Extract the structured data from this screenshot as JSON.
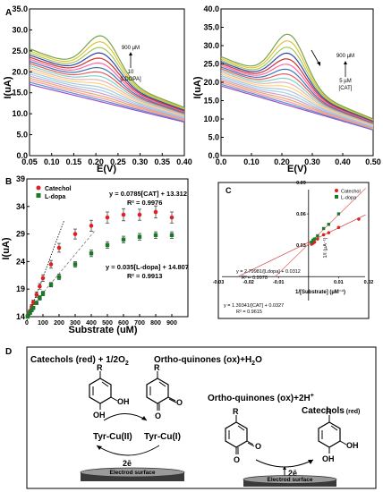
{
  "panels": {
    "A": "A",
    "B": "B",
    "C": "C",
    "D": "D"
  },
  "panel_a": {
    "left": {
      "annotation": [
        "900 µM",
        "10",
        "[LDOPA]"
      ],
      "colors": [
        "#9a50c8",
        "#5a8fd0",
        "#ff9999",
        "#e9a66b",
        "#c8a0d8",
        "#9fd0e0",
        "#b0c4de",
        "#ffd27f",
        "#e7b3b3",
        "#7fd4c4",
        "#e55c5c",
        "#3c78b4",
        "#ff66a3",
        "#cc3333",
        "#3344aa",
        "#9ecb5a",
        "#e2c23a",
        "#75a548"
      ]
    },
    "right": {
      "annotation": [
        "900 µM",
        "5 µM",
        "[CAT]"
      ],
      "colors": [
        "#9a50c8",
        "#5a8fd0",
        "#ff9999",
        "#e9a66b",
        "#c8a0d8",
        "#9fd0e0",
        "#b0c4de",
        "#ffd27f",
        "#e7b3b3",
        "#7fd4c4",
        "#e55c5c",
        "#3c78b4",
        "#ff66a3",
        "#cc3333",
        "#3344aa",
        "#9ecb5a",
        "#e2c23a",
        "#75a548"
      ]
    }
  },
  "panel_b": {
    "legend": [
      "Catechol",
      "L-dopa"
    ],
    "eq_catechol": [
      "y = 0.0785[CAT] + 13.312",
      "R² = 0.9976"
    ],
    "eq_ldopa": [
      "y = 0.035[L-dopa] + 14.807",
      "R² = 0.9913"
    ],
    "colors": {
      "catechol": "#e02020",
      "ldopa": "#1a7a2a"
    }
  },
  "panel_c": {
    "legend": [
      "Catechol",
      "L-dopa"
    ],
    "eq_ldopa": [
      "y = 2.79981/[Ldopa] + 0.0312",
      "R² = 0.9978"
    ],
    "eq_catechol": [
      "y = 1.39341/[CAT] + 0.0327",
      "R² = 0.9615"
    ],
    "xlabel": "1/[Substrate] (µM⁻¹)",
    "ylabel": "1/I (µA⁻¹)"
  },
  "panel_d": {
    "left_title": "Catechols (red) + 1/2O",
    "left_title_sub": "2",
    "left_product": "Ortho-quinones (ox)+H",
    "left_product_sub": "2",
    "left_product_end": "O",
    "right_title": "Ortho-quinones (ox)+2H",
    "right_title_sup": "+",
    "right_product": "Catechols",
    "right_product_note": "(red)",
    "enzyme_left": "Tyr-Cu(II)",
    "enzyme_right": "Tyr-Cu(I)",
    "electrons_left": "2ē",
    "electrons_right": "2ē",
    "electrode_left": "Electrod surface",
    "electrode_right": "Electrod surface",
    "r_label": "R",
    "oh": "OH",
    "o": "O"
  },
  "chart_data": [
    {
      "type": "line",
      "title": "",
      "xlabel": "E(V)",
      "ylabel": "I(uA)",
      "xlim": [
        0.05,
        0.4
      ],
      "ylim": [
        0.0,
        35.0
      ],
      "x_ticks": [
        "0.05",
        "0.10",
        "0.15",
        "0.20",
        "0.25",
        "0.30",
        "0.35",
        "0.40"
      ],
      "y_ticks": [
        "0.0",
        "5.0",
        "10.0",
        "15.0",
        "20.0",
        "25.0",
        "30.0",
        "35.0"
      ],
      "curves": {
        "count": 18,
        "peak_x": 0.215,
        "peak_y_min": 13.0,
        "peak_y_max": 28.5,
        "start_y_min": 17.0,
        "start_y_max": 25.5,
        "end_y_min": 8.0,
        "end_y_max": 11.5
      }
    },
    {
      "type": "line",
      "title": "",
      "xlabel": "E(V)",
      "ylabel": "I(uA)",
      "xlim": [
        0.0,
        0.5
      ],
      "ylim": [
        0.0,
        40.0
      ],
      "x_ticks": [
        "0.0",
        "0.10",
        "0.20",
        "0.30",
        "0.40",
        "0.50"
      ],
      "y_ticks": [
        "0.0",
        "5.0",
        "10.0",
        "15.0",
        "20.0",
        "25.0",
        "30.0",
        "35.0",
        "40.0"
      ],
      "curves": {
        "count": 18,
        "peak_x": 0.225,
        "peak_y_min": 15.0,
        "peak_y_max": 33.0,
        "start_y_min": 19.0,
        "start_y_max": 27.0,
        "end_y_min": 7.0,
        "end_y_max": 10.0
      }
    },
    {
      "type": "scatter",
      "title": "",
      "xlabel": "Substrate (uM)",
      "ylabel": "I(uA)",
      "xlim": [
        0,
        1000
      ],
      "ylim": [
        14,
        39
      ],
      "x_ticks": [
        "0",
        "100",
        "200",
        "300",
        "400",
        "500",
        "600",
        "700",
        "800",
        "900"
      ],
      "y_ticks": [
        "14",
        "19",
        "24",
        "29",
        "34",
        "39"
      ],
      "series": [
        {
          "name": "Catechol",
          "x": [
            5,
            10,
            20,
            30,
            40,
            60,
            80,
            100,
            150,
            200,
            300,
            400,
            500,
            600,
            700,
            800,
            900
          ],
          "y": [
            14.1,
            14.5,
            15.0,
            15.8,
            16.6,
            18.0,
            19.5,
            21.0,
            23.5,
            26.5,
            29.0,
            30.5,
            32.0,
            32.5,
            32.5,
            33.0,
            32.0
          ],
          "err": [
            0.3,
            0.3,
            0.3,
            0.4,
            0.4,
            0.5,
            0.5,
            0.6,
            0.7,
            0.8,
            0.9,
            1.0,
            1.0,
            1.1,
            1.0,
            1.1,
            1.0
          ]
        },
        {
          "name": "L-dopa",
          "x": [
            5,
            10,
            20,
            30,
            40,
            60,
            80,
            100,
            150,
            200,
            300,
            400,
            500,
            600,
            700,
            800,
            900
          ],
          "y": [
            14.0,
            14.3,
            14.7,
            15.2,
            15.6,
            16.5,
            17.4,
            18.2,
            19.8,
            21.2,
            23.5,
            25.5,
            27.0,
            28.0,
            28.5,
            28.8,
            28.8
          ],
          "err": [
            0.2,
            0.2,
            0.2,
            0.3,
            0.3,
            0.3,
            0.4,
            0.4,
            0.4,
            0.5,
            0.5,
            0.6,
            0.6,
            0.6,
            0.6,
            0.6,
            0.6
          ]
        }
      ]
    },
    {
      "type": "scatter",
      "title": "",
      "xlabel": "1/[Substrate] (µM⁻¹)",
      "ylabel": "1/I (µA⁻¹)",
      "xlim": [
        -0.03,
        0.02
      ],
      "ylim": [
        -0.04,
        0.09
      ],
      "x_ticks": [
        "-0.03",
        "-0.02",
        "-0.01",
        "0.01",
        "0.02"
      ],
      "y_ticks": [
        "0.03",
        "0.06",
        "0.09"
      ],
      "series": [
        {
          "name": "Catechol",
          "x": [
            0.001,
            0.0015,
            0.002,
            0.003,
            0.005,
            0.0067,
            0.01,
            0.0167
          ],
          "y": [
            0.031,
            0.032,
            0.033,
            0.036,
            0.04,
            0.042,
            0.047,
            0.055
          ]
        },
        {
          "name": "L-dopa",
          "x": [
            0.001,
            0.0015,
            0.002,
            0.003,
            0.005,
            0.0067,
            0.01
          ],
          "y": [
            0.033,
            0.035,
            0.036,
            0.039,
            0.046,
            0.05,
            0.06
          ]
        }
      ]
    }
  ]
}
